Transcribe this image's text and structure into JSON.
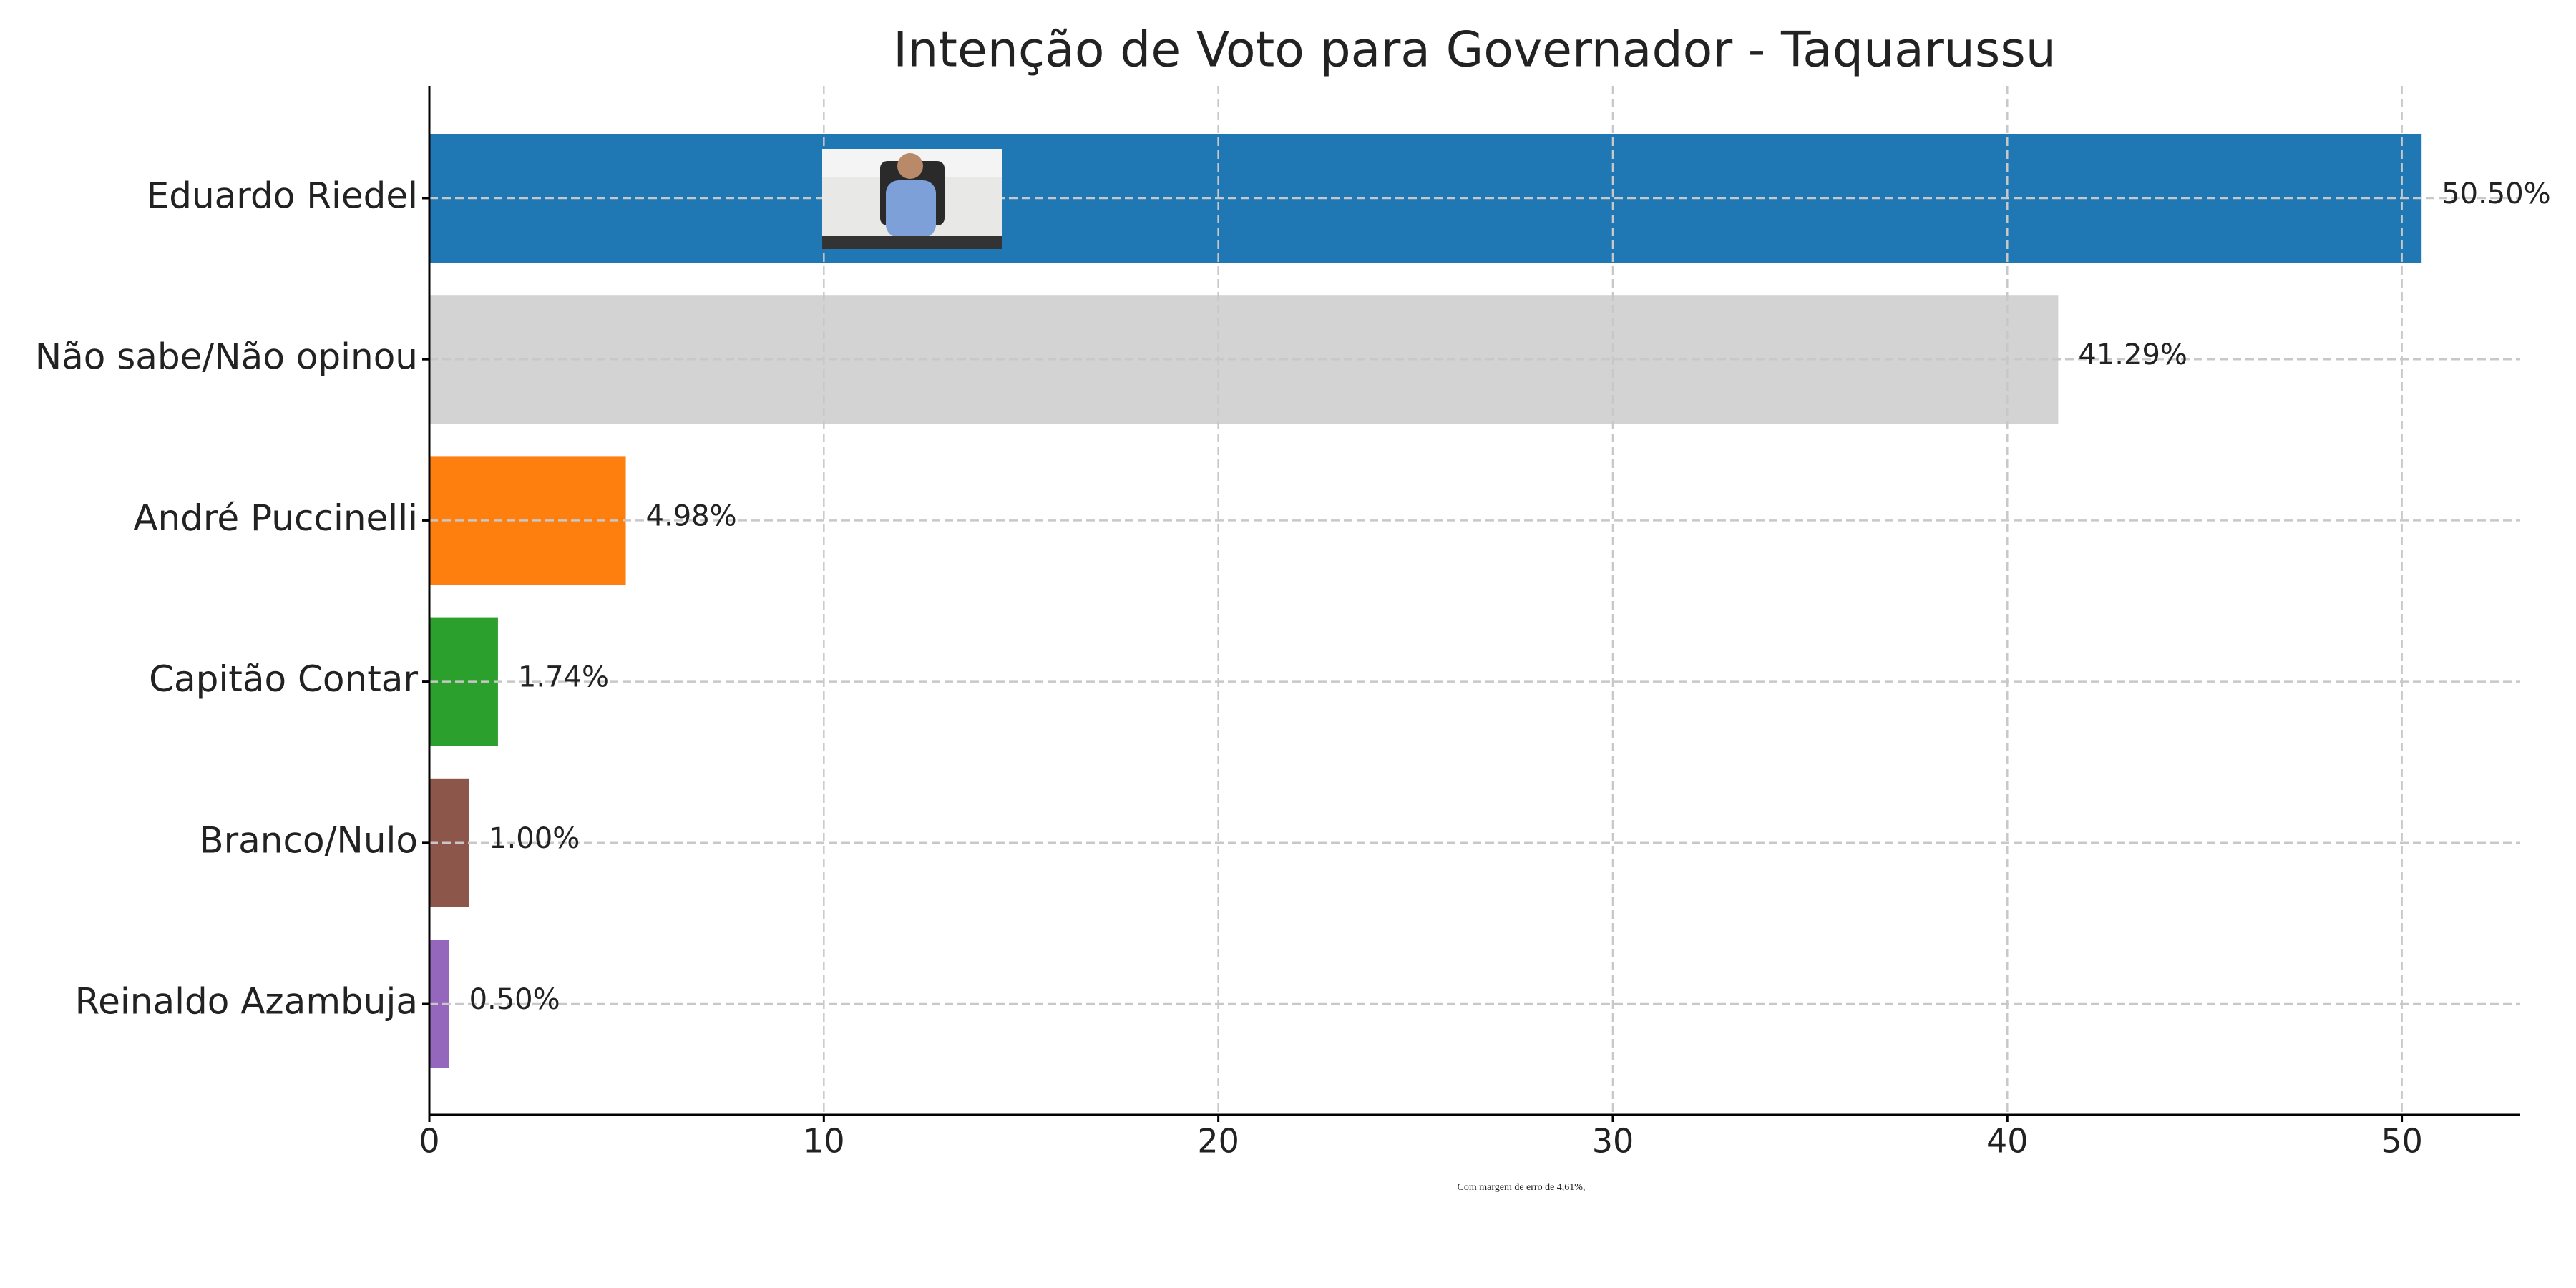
{
  "chart_data": {
    "type": "bar",
    "orientation": "horizontal",
    "title": "Intenção de Voto para Governador - Taquarussu",
    "categories": [
      "Eduardo Riedel",
      "Não sabe/Não opinou",
      "André Puccinelli",
      "Capitão Contar",
      "Branco/Nulo",
      "Reinaldo Azambuja"
    ],
    "values": [
      50.5,
      41.29,
      4.98,
      1.74,
      1.0,
      0.5
    ],
    "value_labels": [
      "50.50%",
      "41.29%",
      "4.98%",
      "1.74%",
      "1.00%",
      "0.50%"
    ],
    "colors": [
      "#1f77b4",
      "#d3d3d3",
      "#ff7f0e",
      "#2ca02c",
      "#8c564b",
      "#9467bd"
    ],
    "xlim": [
      0,
      53
    ],
    "xticks": [
      0,
      10,
      20,
      30,
      40,
      50
    ],
    "grid": true,
    "footnote": "Com margem de erro de 4,61%,"
  }
}
